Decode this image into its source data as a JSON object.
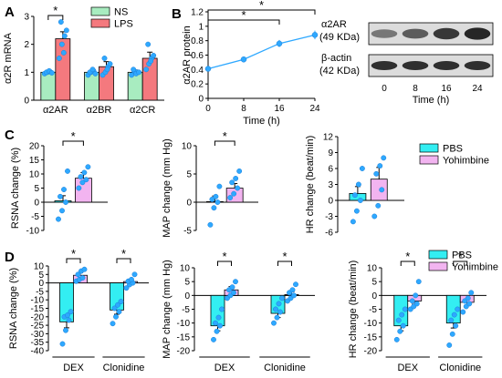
{
  "colors": {
    "ns": "#a8ecc0",
    "lps": "#f4797e",
    "cyan": "#33eef2",
    "pink": "#f2b4f0",
    "dot": "#2ea8ff",
    "line": "#000000"
  },
  "chart_data": [
    {
      "type": "bar",
      "panel_label": "A",
      "ylabel": "α2R mRNA",
      "categories": [
        "α2AR",
        "α2BR",
        "α2CR"
      ],
      "ylim": [
        0,
        3
      ],
      "yticks": [
        0,
        1,
        2,
        3
      ],
      "legend": {
        "position": "top-right",
        "entries": [
          "NS",
          "LPS"
        ]
      },
      "series": [
        {
          "name": "NS",
          "values": [
            1.0,
            1.0,
            1.0
          ],
          "errors": [
            0.04,
            0.06,
            0.08
          ],
          "points": [
            [
              0.95,
              1.0,
              1.02,
              1.0,
              1.05,
              0.98
            ],
            [
              0.9,
              1.0,
              1.05,
              1.0,
              1.1,
              0.95
            ],
            [
              0.9,
              1.05,
              1.0,
              1.1,
              0.95,
              1.0
            ]
          ]
        },
        {
          "name": "LPS",
          "values": [
            2.2,
            1.2,
            1.5
          ],
          "errors": [
            0.25,
            0.18,
            0.22
          ],
          "points": [
            [
              1.5,
              2.0,
              2.3,
              2.8,
              1.7,
              2.5
            ],
            [
              0.9,
              1.0,
              1.2,
              1.5,
              1.1,
              1.3
            ],
            [
              1.1,
              1.3,
              1.5,
              2.0,
              1.4,
              1.6
            ]
          ]
        }
      ],
      "annotations": [
        {
          "text": "*",
          "between": [
            "NS α2AR",
            "LPS α2AR"
          ]
        }
      ]
    },
    {
      "type": "line",
      "panel_label": "B",
      "ylabel": "α2AR protein",
      "xlabel": "Time (h)",
      "x": [
        0,
        8,
        16,
        24
      ],
      "y": [
        0.41,
        0.54,
        0.76,
        0.88
      ],
      "errors": [
        0.02,
        0.03,
        0.05,
        0.06
      ],
      "xlim": [
        0,
        24
      ],
      "ylim": [
        0,
        1.2
      ],
      "xticks": [
        0,
        8,
        16,
        24
      ],
      "yticks": [
        0,
        0.2,
        0.4,
        0.6,
        0.8,
        1.0,
        1.2
      ],
      "annotations": [
        {
          "text": "*",
          "from": 0,
          "to": 16
        },
        {
          "text": "*",
          "from": 0,
          "to": 24
        }
      ]
    },
    {
      "type": "table",
      "panel_label": "B-blot",
      "rows": [
        "α2AR",
        "(49 KDa)",
        "β-actin",
        "(42 KDa)"
      ],
      "lanes": [
        0,
        8,
        16,
        24
      ],
      "xlabel": "Time (h)",
      "band_intensity_a2ar": [
        0.45,
        0.6,
        0.8,
        0.9
      ],
      "band_intensity_actin": [
        0.85,
        0.85,
        0.85,
        0.85
      ]
    },
    {
      "type": "bar",
      "panel_label": "C",
      "ylabel": "RSNA change (%)",
      "categories": [
        "PBS",
        "Yohimbine"
      ],
      "values": [
        0.5,
        8.5
      ],
      "errors": [
        1.8,
        2.0
      ],
      "ylim": [
        -10,
        20
      ],
      "yticks": [
        -10,
        -5,
        0,
        5,
        10,
        15,
        20
      ],
      "points": [
        [
          -6,
          -3,
          0,
          2,
          4.5,
          11
        ],
        [
          5,
          7,
          8,
          9,
          10.5,
          12.5
        ]
      ],
      "annotations": [
        {
          "text": "*"
        }
      ]
    },
    {
      "type": "bar",
      "panel_label": "C",
      "ylabel": "MAP change (mm Hg)",
      "categories": [
        "PBS",
        "Yohimbine"
      ],
      "values": [
        0.1,
        2.5
      ],
      "errors": [
        1.0,
        0.8
      ],
      "ylim": [
        -5,
        10
      ],
      "yticks": [
        -5,
        0,
        5,
        10
      ],
      "points": [
        [
          -4,
          -1,
          0,
          0.5,
          1,
          2.8
        ],
        [
          0.8,
          1.5,
          2.5,
          3.5,
          4.2,
          5.5
        ]
      ],
      "annotations": [
        {
          "text": "*"
        }
      ]
    },
    {
      "type": "bar",
      "panel_label": "C",
      "ylabel": "HR change (beat/min)",
      "categories": [
        "PBS",
        "Yohimbine"
      ],
      "values": [
        1.3,
        4.0
      ],
      "errors": [
        1.3,
        2.2
      ],
      "ylim": [
        -6,
        12
      ],
      "yticks": [
        -6,
        -3,
        0,
        3,
        6,
        9,
        12
      ],
      "points": [
        [
          -4,
          -2,
          0,
          1,
          3,
          6
        ],
        [
          -3,
          -1,
          2,
          5,
          6.5,
          8
        ]
      ],
      "legend": {
        "position": "top-right",
        "entries": [
          "PBS",
          "Yohimbine"
        ]
      }
    },
    {
      "type": "bar",
      "panel_label": "D",
      "ylabel": "RSNA change (%)",
      "categories": [
        "DEX",
        "Clonidine"
      ],
      "ylim": [
        -40,
        10
      ],
      "yticks": [
        -40,
        -35,
        -30,
        -25,
        -20,
        -15,
        -10,
        -5,
        0,
        5,
        10
      ],
      "legend": {
        "position": "top-right",
        "entries": [
          "PBS",
          "Yohimbine"
        ]
      },
      "series": [
        {
          "name": "PBS",
          "values": [
            -23,
            -16
          ],
          "errors": [
            3.5,
            2.5
          ],
          "points": [
            [
              -36,
              -28,
              -22,
              -20,
              -19,
              -17
            ],
            [
              -24,
              -20,
              -17,
              -15,
              -13,
              -11
            ]
          ]
        },
        {
          "name": "Yohimbine",
          "values": [
            4.5,
            0.8
          ],
          "errors": [
            1.5,
            1.4
          ],
          "points": [
            [
              1,
              2,
              3,
              5,
              7,
              8
            ],
            [
              -3,
              -1,
              0,
              1,
              2,
              5
            ]
          ]
        }
      ],
      "annotations": [
        {
          "text": "*",
          "group": "DEX"
        },
        {
          "text": "*",
          "group": "Clonidine"
        }
      ]
    },
    {
      "type": "bar",
      "panel_label": "D",
      "ylabel": "MAP change (mm Hg)",
      "categories": [
        "DEX",
        "Clonidine"
      ],
      "ylim": [
        -20,
        10
      ],
      "yticks": [
        -20,
        -15,
        -10,
        -5,
        0,
        5,
        10
      ],
      "series": [
        {
          "name": "PBS",
          "values": [
            -11,
            -6.5
          ],
          "errors": [
            1.8,
            1.5
          ],
          "points": [
            [
              -16,
              -13,
              -11,
              -10,
              -8,
              -5
            ],
            [
              -10,
              -8,
              -6,
              -5,
              -3,
              -1
            ]
          ]
        },
        {
          "name": "Yohimbine",
          "values": [
            2.0,
            0.3
          ],
          "errors": [
            1.2,
            1.0
          ],
          "points": [
            [
              -1,
              0,
              1,
              2,
              3,
              5
            ],
            [
              -2,
              -1,
              0,
              1,
              2,
              4
            ]
          ]
        }
      ],
      "annotations": [
        {
          "text": "*",
          "group": "DEX"
        },
        {
          "text": "*",
          "group": "Clonidine"
        }
      ]
    },
    {
      "type": "bar",
      "panel_label": "D",
      "ylabel": "HR change (beat/min)",
      "categories": [
        "DEX",
        "Clonidine"
      ],
      "ylim": [
        -20,
        10
      ],
      "yticks": [
        -20,
        -15,
        -10,
        -5,
        0,
        5,
        10
      ],
      "series": [
        {
          "name": "PBS",
          "values": [
            -11,
            -10
          ],
          "errors": [
            1.8,
            1.8
          ],
          "points": [
            [
              -16,
              -13,
              -11,
              -9,
              -7,
              -5
            ],
            [
              -18,
              -14,
              -11,
              -9,
              -7,
              -5
            ]
          ]
        },
        {
          "name": "Yohimbine",
          "values": [
            -2.0,
            -2.5
          ],
          "errors": [
            1.2,
            1.0
          ],
          "points": [
            [
              -5,
              -4,
              -3,
              -2,
              0,
              5
            ],
            [
              -6,
              -4,
              -3,
              -2,
              -1,
              1
            ]
          ]
        }
      ],
      "annotations": [
        {
          "text": "*",
          "group": "DEX"
        },
        {
          "text": "*",
          "group": "Clonidine"
        }
      ]
    }
  ]
}
